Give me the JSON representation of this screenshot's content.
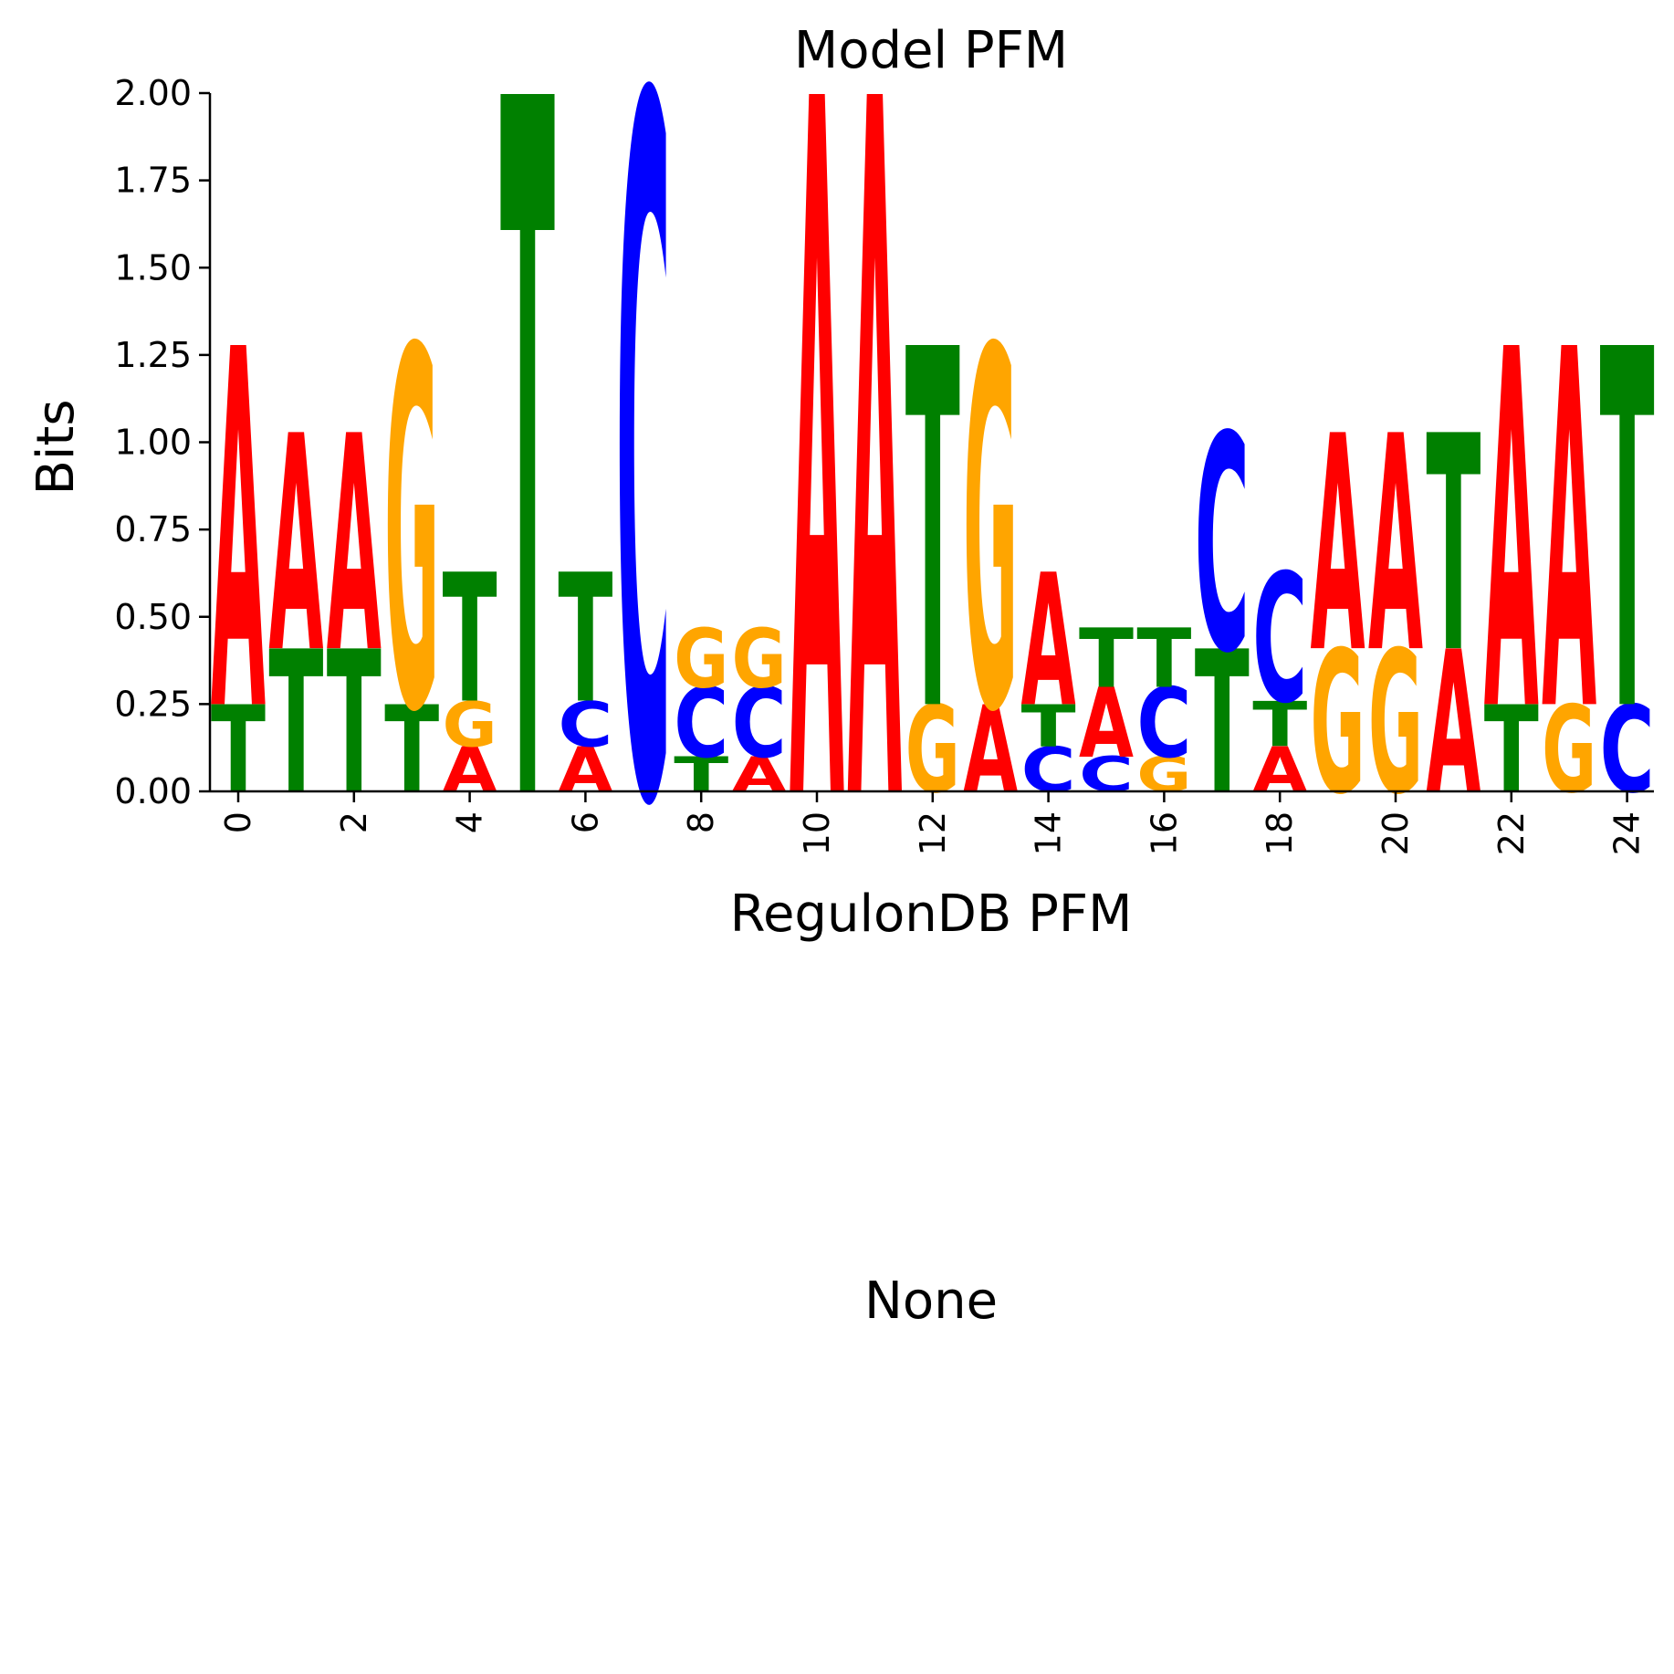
{
  "chart_data": {
    "type": "sequence-logo",
    "title": "Model PFM",
    "xlabel": "RegulonDB PFM",
    "ylabel": "Bits",
    "ylim": [
      0,
      2.0
    ],
    "yticks": [
      "0.00",
      "0.25",
      "0.50",
      "0.75",
      "1.00",
      "1.25",
      "1.50",
      "1.75",
      "2.00"
    ],
    "ytick_values": [
      0,
      0.25,
      0.5,
      0.75,
      1.0,
      1.25,
      1.5,
      1.75,
      2.0
    ],
    "xticks": [
      "0",
      "2",
      "4",
      "6",
      "8",
      "10",
      "12",
      "14",
      "16",
      "18",
      "20",
      "22",
      "24"
    ],
    "xtick_positions": [
      0,
      2,
      4,
      6,
      8,
      10,
      12,
      14,
      16,
      18,
      20,
      22,
      24
    ],
    "colors": {
      "A": "#ff0000",
      "C": "#0000ff",
      "G": "#ffa500",
      "T": "#008000"
    },
    "positions": [
      {
        "pos": 0,
        "stack": [
          {
            "base": "T",
            "bits": 0.25
          },
          {
            "base": "A",
            "bits": 1.03
          }
        ]
      },
      {
        "pos": 1,
        "stack": [
          {
            "base": "T",
            "bits": 0.41
          },
          {
            "base": "A",
            "bits": 0.62
          }
        ]
      },
      {
        "pos": 2,
        "stack": [
          {
            "base": "T",
            "bits": 0.41
          },
          {
            "base": "A",
            "bits": 0.62
          }
        ]
      },
      {
        "pos": 3,
        "stack": [
          {
            "base": "T",
            "bits": 0.25
          },
          {
            "base": "G",
            "bits": 1.03
          }
        ]
      },
      {
        "pos": 4,
        "stack": [
          {
            "base": "A",
            "bits": 0.13
          },
          {
            "base": "G",
            "bits": 0.13
          },
          {
            "base": "T",
            "bits": 0.37
          }
        ]
      },
      {
        "pos": 5,
        "stack": [
          {
            "base": "T",
            "bits": 2.0
          }
        ]
      },
      {
        "pos": 6,
        "stack": [
          {
            "base": "A",
            "bits": 0.13
          },
          {
            "base": "C",
            "bits": 0.13
          },
          {
            "base": "T",
            "bits": 0.37
          }
        ]
      },
      {
        "pos": 7,
        "stack": [
          {
            "base": "C",
            "bits": 2.0
          }
        ]
      },
      {
        "pos": 8,
        "stack": [
          {
            "base": "T",
            "bits": 0.1
          },
          {
            "base": "C",
            "bits": 0.2
          },
          {
            "base": "G",
            "bits": 0.17
          }
        ]
      },
      {
        "pos": 9,
        "stack": [
          {
            "base": "A",
            "bits": 0.1
          },
          {
            "base": "C",
            "bits": 0.2
          },
          {
            "base": "G",
            "bits": 0.17
          }
        ]
      },
      {
        "pos": 10,
        "stack": [
          {
            "base": "A",
            "bits": 2.0
          }
        ]
      },
      {
        "pos": 11,
        "stack": [
          {
            "base": "A",
            "bits": 2.0
          }
        ]
      },
      {
        "pos": 12,
        "stack": [
          {
            "base": "G",
            "bits": 0.25
          },
          {
            "base": "T",
            "bits": 1.03
          }
        ]
      },
      {
        "pos": 13,
        "stack": [
          {
            "base": "A",
            "bits": 0.25
          },
          {
            "base": "G",
            "bits": 1.03
          }
        ]
      },
      {
        "pos": 14,
        "stack": [
          {
            "base": "C",
            "bits": 0.13
          },
          {
            "base": "T",
            "bits": 0.12
          },
          {
            "base": "A",
            "bits": 0.38
          }
        ]
      },
      {
        "pos": 15,
        "stack": [
          {
            "base": "C",
            "bits": 0.1
          },
          {
            "base": "A",
            "bits": 0.2
          },
          {
            "base": "T",
            "bits": 0.17
          }
        ]
      },
      {
        "pos": 16,
        "stack": [
          {
            "base": "G",
            "bits": 0.1
          },
          {
            "base": "C",
            "bits": 0.2
          },
          {
            "base": "T",
            "bits": 0.17
          }
        ]
      },
      {
        "pos": 17,
        "stack": [
          {
            "base": "T",
            "bits": 0.41
          },
          {
            "base": "C",
            "bits": 0.62
          }
        ]
      },
      {
        "pos": 18,
        "stack": [
          {
            "base": "A",
            "bits": 0.13
          },
          {
            "base": "T",
            "bits": 0.13
          },
          {
            "base": "C",
            "bits": 0.37
          }
        ]
      },
      {
        "pos": 19,
        "stack": [
          {
            "base": "G",
            "bits": 0.41
          },
          {
            "base": "A",
            "bits": 0.62
          }
        ]
      },
      {
        "pos": 20,
        "stack": [
          {
            "base": "G",
            "bits": 0.41
          },
          {
            "base": "A",
            "bits": 0.62
          }
        ]
      },
      {
        "pos": 21,
        "stack": [
          {
            "base": "A",
            "bits": 0.41
          },
          {
            "base": "T",
            "bits": 0.62
          }
        ]
      },
      {
        "pos": 22,
        "stack": [
          {
            "base": "T",
            "bits": 0.25
          },
          {
            "base": "A",
            "bits": 1.03
          }
        ]
      },
      {
        "pos": 23,
        "stack": [
          {
            "base": "G",
            "bits": 0.25
          },
          {
            "base": "A",
            "bits": 1.03
          }
        ]
      },
      {
        "pos": 24,
        "stack": [
          {
            "base": "C",
            "bits": 0.25
          },
          {
            "base": "T",
            "bits": 1.03
          }
        ]
      }
    ]
  },
  "second_panel": {
    "title": "None"
  }
}
